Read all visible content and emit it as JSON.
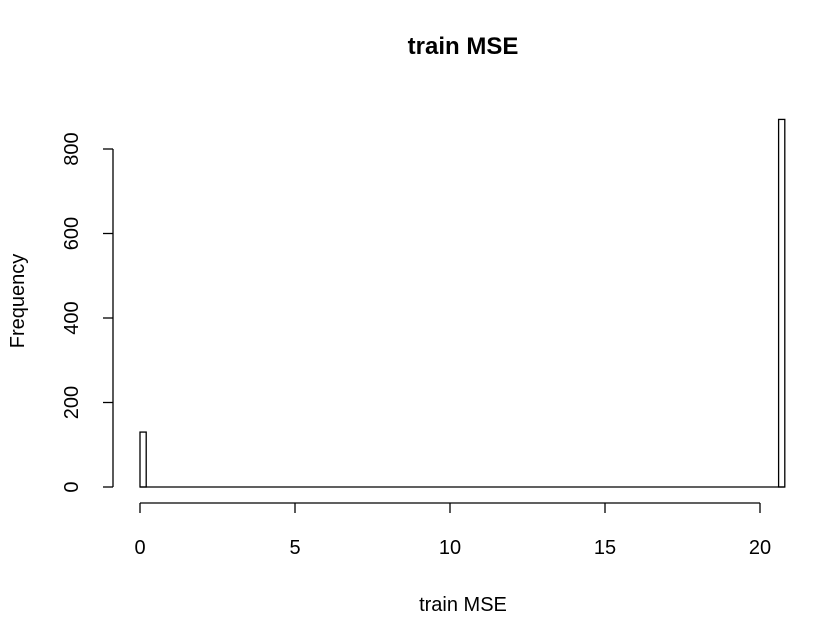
{
  "chart_data": {
    "type": "bar",
    "subtype": "histogram",
    "title": "train MSE",
    "xlabel": "train MSE",
    "ylabel": "Frequency",
    "xlim": [
      0,
      21
    ],
    "ylim": [
      0,
      870
    ],
    "x_ticks": [
      0,
      5,
      10,
      15,
      20
    ],
    "y_ticks": [
      0,
      200,
      400,
      600,
      800
    ],
    "bin_width": 0.2,
    "bins": [
      {
        "x0": 0.0,
        "x1": 0.2,
        "count": 130
      },
      {
        "x0": 20.6,
        "x1": 20.8,
        "count": 870
      }
    ],
    "grid": false,
    "legend": "none",
    "colors": {
      "bar_fill": "#ffffff",
      "bar_stroke": "#000000",
      "axis": "#000000",
      "background": "#ffffff"
    }
  }
}
